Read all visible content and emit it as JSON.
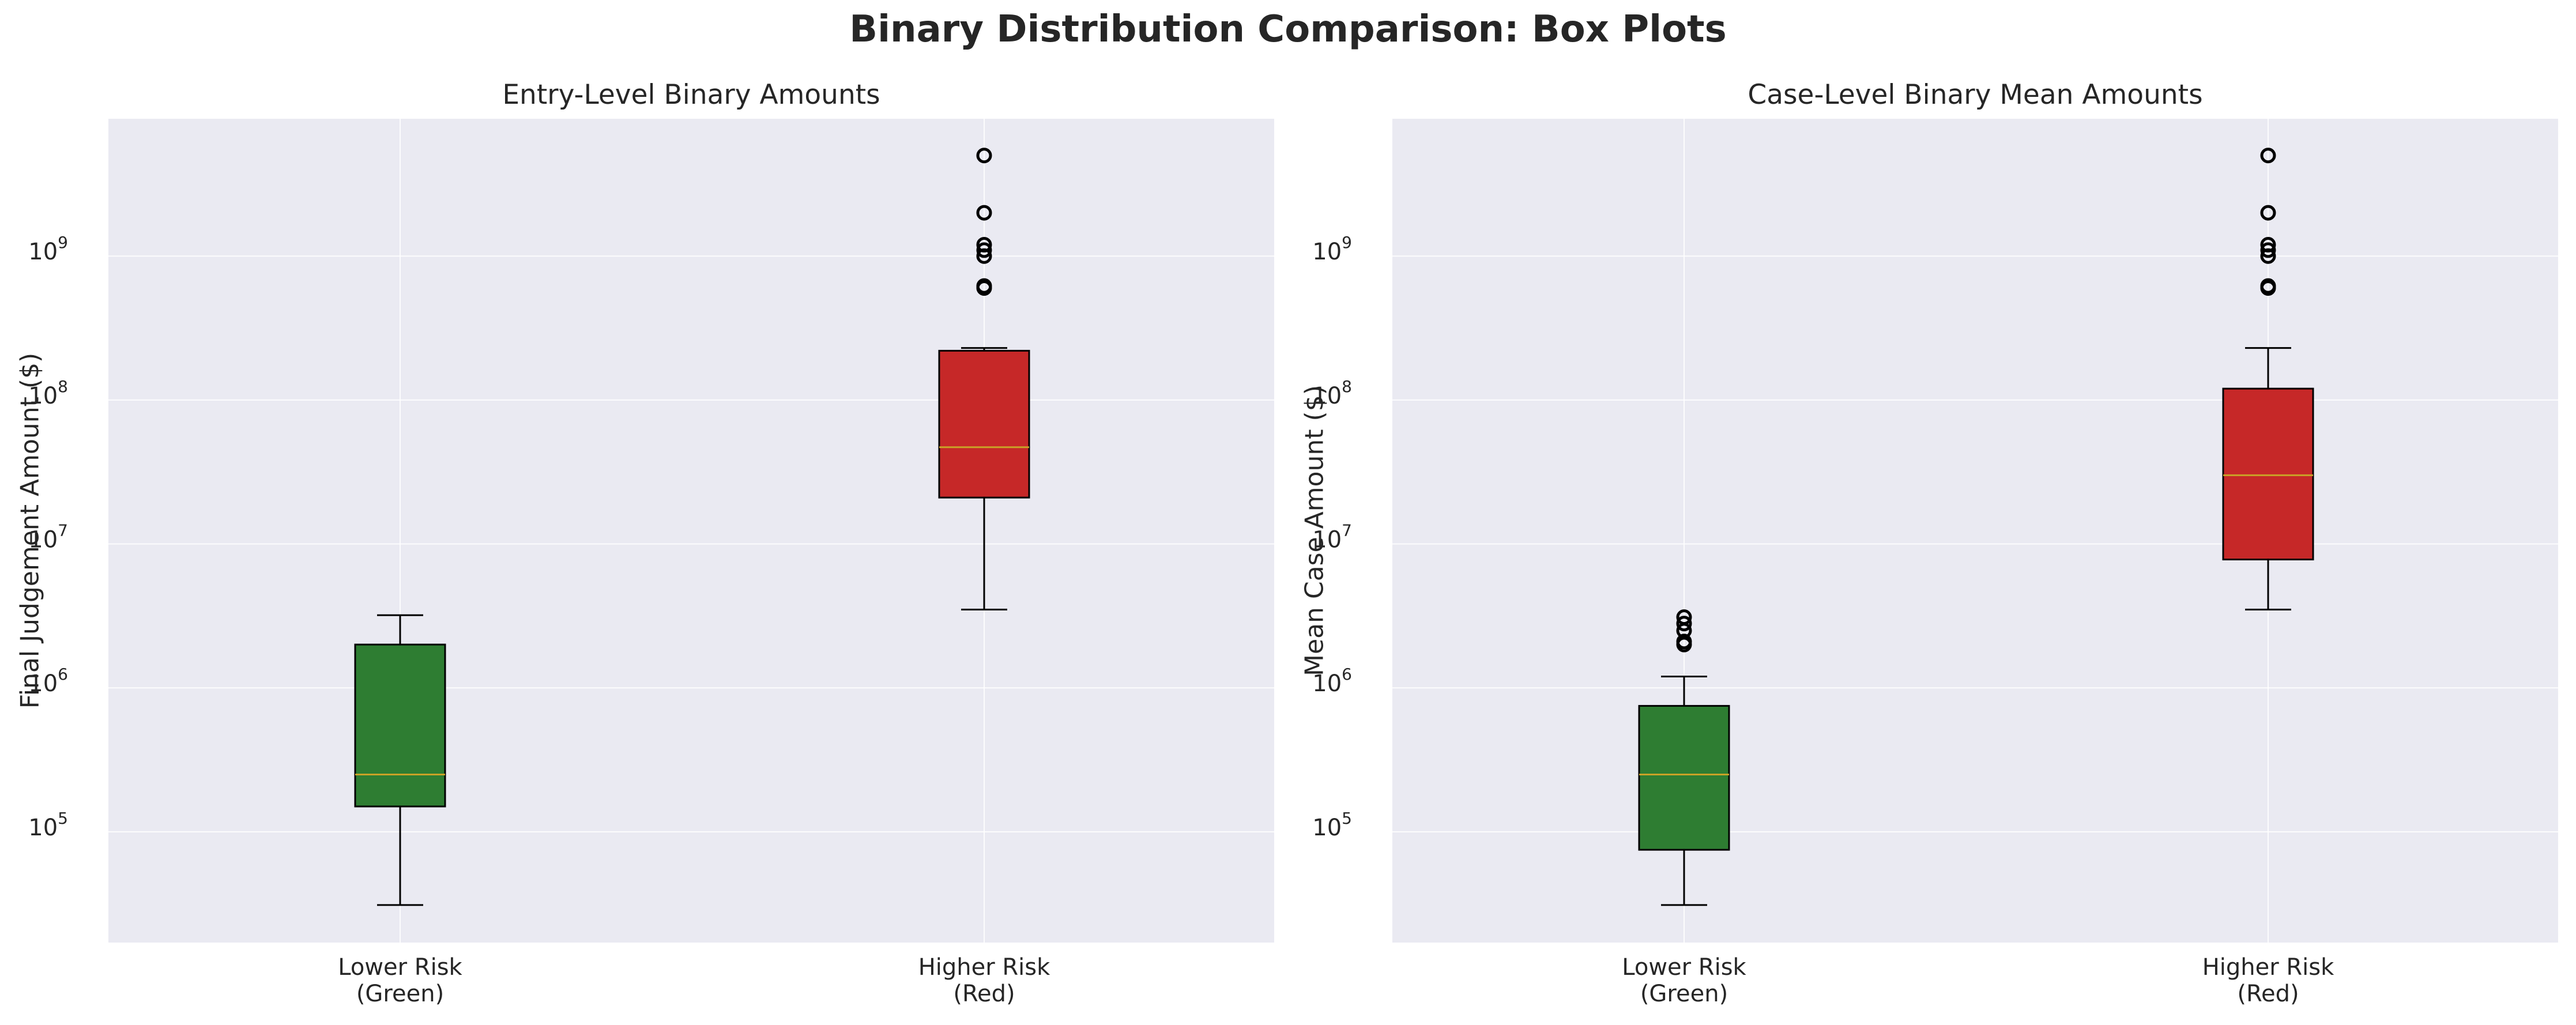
{
  "figure_title": "Binary Distribution Comparison: Box Plots",
  "colors": {
    "background": "#eaeaf2",
    "grid": "#ffffff",
    "lower_risk_box": "#2e7d32",
    "higher_risk_box": "#c62828",
    "median": "#c9a227",
    "outline": "#000000"
  },
  "chart_data": [
    {
      "type": "box",
      "title": "Entry-Level Binary Amounts",
      "xlabel": "",
      "ylabel": "Final Judgement Amount ($)",
      "yscale": "log",
      "ylim": [
        17000,
        9000000000
      ],
      "yticks": [
        {
          "base": "10",
          "exp": "5",
          "value": 100000
        },
        {
          "base": "10",
          "exp": "6",
          "value": 1000000
        },
        {
          "base": "10",
          "exp": "7",
          "value": 10000000
        },
        {
          "base": "10",
          "exp": "8",
          "value": 100000000
        },
        {
          "base": "10",
          "exp": "9",
          "value": 1000000000
        }
      ],
      "grid": true,
      "categories": [
        {
          "line1": "Lower Risk",
          "line2": "(Green)"
        },
        {
          "line1": "Higher Risk",
          "line2": "(Red)"
        }
      ],
      "boxes": [
        {
          "name": "Lower Risk",
          "color": "#2e7d32",
          "whisker_low": 31000,
          "q1": 150000,
          "median": 250000,
          "q3": 2000000,
          "whisker_high": 3200000,
          "outliers": []
        },
        {
          "name": "Higher Risk",
          "color": "#c62828",
          "whisker_low": 3500000,
          "q1": 21000000,
          "median": 47000000,
          "q3": 220000000,
          "whisker_high": 230000000,
          "outliers": [
            600000000,
            620000000,
            1000000000,
            1100000000,
            1200000000,
            2000000000,
            5000000000
          ]
        }
      ]
    },
    {
      "type": "box",
      "title": "Case-Level Binary Mean Amounts",
      "xlabel": "",
      "ylabel": "Mean Case Amount ($)",
      "yscale": "log",
      "ylim": [
        17000,
        9000000000
      ],
      "yticks": [
        {
          "base": "10",
          "exp": "5",
          "value": 100000
        },
        {
          "base": "10",
          "exp": "6",
          "value": 1000000
        },
        {
          "base": "10",
          "exp": "7",
          "value": 10000000
        },
        {
          "base": "10",
          "exp": "8",
          "value": 100000000
        },
        {
          "base": "10",
          "exp": "9",
          "value": 1000000000
        }
      ],
      "grid": true,
      "categories": [
        {
          "line1": "Lower Risk",
          "line2": "(Green)"
        },
        {
          "line1": "Higher Risk",
          "line2": "(Red)"
        }
      ],
      "boxes": [
        {
          "name": "Lower Risk",
          "color": "#2e7d32",
          "whisker_low": 31000,
          "q1": 75000,
          "median": 250000,
          "q3": 750000,
          "whisker_high": 1200000,
          "outliers": [
            2000000,
            2100000,
            2500000,
            2800000,
            3100000
          ]
        },
        {
          "name": "Higher Risk",
          "color": "#c62828",
          "whisker_low": 3500000,
          "q1": 7800000,
          "median": 30000000,
          "q3": 120000000,
          "whisker_high": 230000000,
          "outliers": [
            600000000,
            620000000,
            1000000000,
            1100000000,
            1200000000,
            2000000000,
            5000000000
          ]
        }
      ]
    }
  ]
}
